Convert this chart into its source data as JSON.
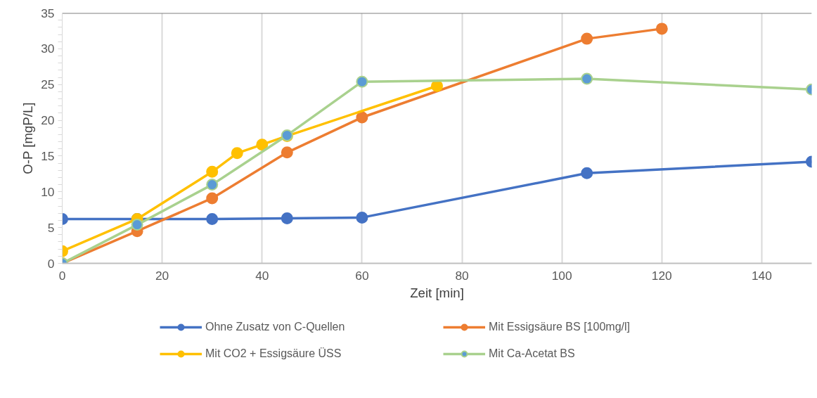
{
  "chart_data": {
    "type": "line",
    "xlabel": "Zeit [min]",
    "ylabel": "O-P [mgP/L]",
    "xlim": [
      0,
      150
    ],
    "xticks": [
      0,
      20,
      40,
      60,
      80,
      100,
      120,
      140
    ],
    "ylim": [
      0,
      35
    ],
    "yticks": [
      0,
      5,
      10,
      15,
      20,
      25,
      30,
      35
    ],
    "grid": "x",
    "legend": "bottom",
    "marker": "circle",
    "line_style": "solid",
    "series": [
      {
        "name": "Ohne Zusatz von C-Quellen",
        "color": "#4472c4",
        "x": [
          0,
          15,
          30,
          45,
          60,
          105,
          150
        ],
        "values": [
          6.2,
          6.2,
          6.2,
          6.3,
          6.4,
          12.6,
          14.2
        ]
      },
      {
        "name": "Mit Essigsäure BS [100mg/l]",
        "color": "#ed7d31",
        "x": [
          0,
          15,
          30,
          45,
          60,
          105,
          120
        ],
        "values": [
          0,
          4.5,
          9.1,
          15.5,
          20.4,
          31.4,
          32.8
        ]
      },
      {
        "name": "Mit CO2 + Essigsäure ÜSS",
        "color": "#ffc000",
        "x": [
          0,
          15,
          30,
          35,
          40,
          45,
          75
        ],
        "values": [
          1.7,
          6.2,
          12.8,
          15.4,
          16.6,
          17.8,
          24.8
        ]
      },
      {
        "name": "Mit Ca-Acetat BS",
        "color": "#a9d18e",
        "colors": [
          "#5b9bd5",
          "#5b9bd5",
          "#5b9bd5",
          "#5b9bd5",
          "#5b9bd5",
          "#5b9bd5",
          "#5b9bd5"
        ],
        "x": [
          0,
          15,
          30,
          45,
          60,
          105,
          150
        ],
        "values": [
          0,
          5.4,
          11,
          17.9,
          25.4,
          25.8,
          24.3
        ]
      }
    ]
  }
}
